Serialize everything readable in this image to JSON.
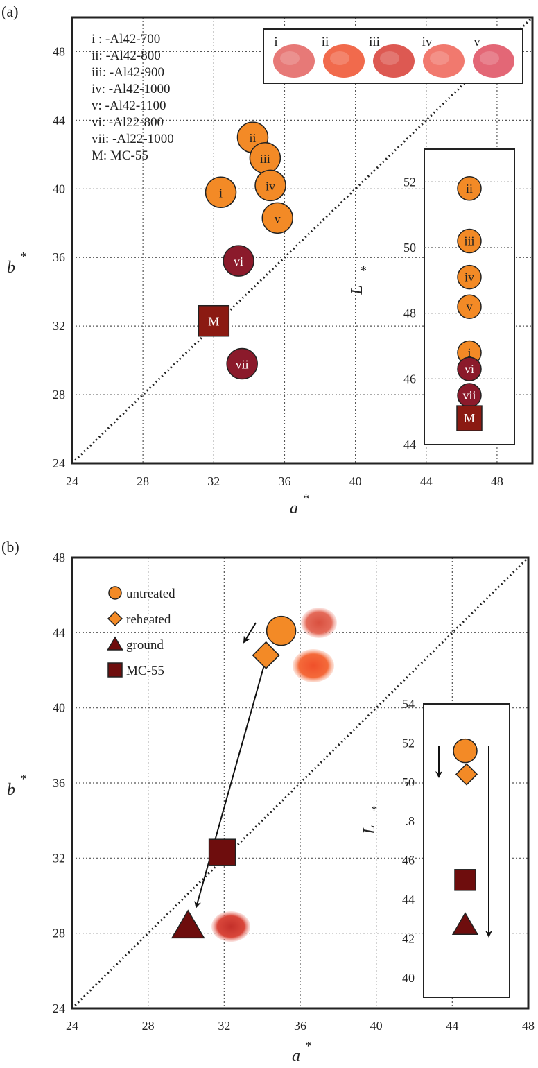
{
  "chart_data": [
    {
      "panel_label": "(a)",
      "type": "scatter",
      "xlabel": "a",
      "xlabel_sup": "*",
      "ylabel": "b",
      "ylabel_sup": "*",
      "xlim": [
        24,
        50
      ],
      "ylim": [
        24,
        50
      ],
      "xticks": [
        24,
        28,
        32,
        36,
        40,
        44,
        48
      ],
      "yticks": [
        24,
        28,
        32,
        36,
        40,
        44,
        48
      ],
      "grid": true,
      "diagonal_line": true,
      "legend_lines": [
        "i : -Al42-700",
        "ii: -Al42-800",
        "iii: -Al42-900",
        "iv: -Al42-1000",
        "v: -Al42-1100",
        "vi: -Al22-800",
        "vii: -Al22-1000",
        "M: MC-55"
      ],
      "sample_labels": [
        "i",
        "ii",
        "iii",
        "iv",
        "v"
      ],
      "points": [
        {
          "label": "i",
          "a": 32.4,
          "b": 39.8,
          "L": 46.8,
          "group": "Al42",
          "color": "#f38a26"
        },
        {
          "label": "ii",
          "a": 34.2,
          "b": 43.0,
          "L": 51.8,
          "group": "Al42",
          "color": "#f38a26"
        },
        {
          "label": "iii",
          "a": 34.9,
          "b": 41.8,
          "L": 50.2,
          "group": "Al42",
          "color": "#f38a26"
        },
        {
          "label": "iv",
          "a": 35.2,
          "b": 40.2,
          "L": 49.1,
          "group": "Al42",
          "color": "#f38a26"
        },
        {
          "label": "v",
          "a": 35.6,
          "b": 38.3,
          "L": 48.2,
          "group": "Al42",
          "color": "#f38a26"
        },
        {
          "label": "vi",
          "a": 33.4,
          "b": 35.8,
          "L": 46.3,
          "group": "Al22",
          "color": "#8b1a2b"
        },
        {
          "label": "vii",
          "a": 33.6,
          "b": 29.8,
          "L": 45.5,
          "group": "Al22",
          "color": "#8b1a2b"
        },
        {
          "label": "M",
          "a": 32.0,
          "b": 32.3,
          "L": 44.8,
          "group": "MC-55",
          "color": "#8b1a12"
        }
      ],
      "inset": {
        "ylabel": "L",
        "ylabel_sup": "*",
        "ylim": [
          44,
          53
        ],
        "yticks": [
          44,
          46,
          48,
          50,
          52
        ]
      }
    },
    {
      "panel_label": "(b)",
      "type": "scatter",
      "xlabel": "a",
      "xlabel_sup": "*",
      "ylabel": "b",
      "ylabel_sup": "*",
      "xlim": [
        24,
        48
      ],
      "ylim": [
        24,
        48
      ],
      "xticks": [
        24,
        28,
        32,
        36,
        40,
        44,
        48
      ],
      "yticks": [
        24,
        28,
        32,
        36,
        40,
        44,
        48
      ],
      "grid": true,
      "diagonal_line": true,
      "legend": [
        "untreated",
        "reheated",
        "ground",
        "MC-55"
      ],
      "points": [
        {
          "series": "untreated",
          "a": 35.0,
          "b": 44.1,
          "L": 51.6,
          "shape": "circle",
          "color": "#f38a26"
        },
        {
          "series": "reheated",
          "a": 34.2,
          "b": 42.8,
          "L": 50.4,
          "shape": "diamond",
          "color": "#f38a26"
        },
        {
          "series": "ground",
          "a": 30.1,
          "b": 28.4,
          "L": 42.7,
          "shape": "triangle",
          "color": "#6e0d0d"
        },
        {
          "series": "MC-55",
          "a": 31.9,
          "b": 32.3,
          "L": 45.0,
          "shape": "square",
          "color": "#6e0d0d"
        }
      ],
      "inset": {
        "ylabel": "L",
        "ylabel_sup": "*",
        "ylim": [
          39,
          54
        ],
        "yticks": [
          40,
          42,
          44,
          46,
          50,
          52,
          54
        ],
        "tick_label_at_48": ".8"
      }
    }
  ]
}
